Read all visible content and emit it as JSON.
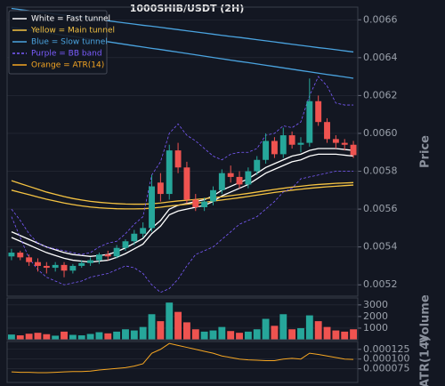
{
  "chart_data": [
    {
      "type": "candlestick",
      "title": "1000SHIB/USDT (2H)",
      "ylabel": "Price",
      "grid": true,
      "legend": "upper left",
      "ylim": [
        0.00514,
        0.006667
      ],
      "yticks": [
        0.0052,
        0.0054,
        0.0056,
        0.0058,
        {
          "value": 0.006,
          "label": "0.0060"
        },
        0.0062,
        0.0064,
        0.0066
      ],
      "up_color": "#26a69a",
      "down_color": "#ef5350",
      "open": [
        0.00535,
        0.00537,
        0.005345,
        0.00532,
        0.0053,
        0.00529,
        0.005305,
        0.005275,
        0.0053,
        0.005315,
        0.00533,
        0.00536,
        0.00535,
        0.005395,
        0.00543,
        0.00547,
        0.0055,
        0.00574,
        0.00568,
        0.00591,
        0.00582,
        0.00565,
        0.00561,
        0.00564,
        0.0057,
        0.00579,
        0.00577,
        0.00573,
        0.0058,
        0.00586,
        0.00596,
        0.00589,
        0.00599,
        0.00594,
        0.00595,
        0.00617,
        0.00606,
        0.00597,
        0.00595,
        0.00594
      ],
      "high": [
        0.00539,
        0.00538,
        0.00536,
        0.00534,
        0.00532,
        0.00532,
        0.00532,
        0.00531,
        0.00533,
        0.005345,
        0.00537,
        0.00538,
        0.00541,
        0.00544,
        0.00549,
        0.00553,
        0.00578,
        0.00579,
        0.00594,
        0.00595,
        0.00585,
        0.00568,
        0.00566,
        0.00572,
        0.00581,
        0.00583,
        0.0058,
        0.00582,
        0.00588,
        0.006,
        0.00598,
        0.00603,
        0.00601,
        0.00598,
        0.00629,
        0.0062,
        0.00608,
        0.00599,
        0.00597,
        0.00596
      ],
      "low": [
        0.00533,
        0.00533,
        0.0053,
        0.00527,
        0.00526,
        0.00527,
        0.00524,
        0.00526,
        0.00529,
        0.0053,
        0.00531,
        0.00533,
        0.00534,
        0.00538,
        0.00541,
        0.00545,
        0.00548,
        0.00564,
        0.00565,
        0.00579,
        0.00563,
        0.00559,
        0.00559,
        0.00562,
        0.00568,
        0.00574,
        0.00571,
        0.00571,
        0.00578,
        0.00584,
        0.00587,
        0.00587,
        0.00592,
        0.0059,
        0.00593,
        0.00604,
        0.00595,
        0.00592,
        0.00591,
        0.00587
      ],
      "close": [
        0.00537,
        0.005345,
        0.00532,
        0.0053,
        0.00529,
        0.005305,
        0.005275,
        0.0053,
        0.005315,
        0.00533,
        0.00536,
        0.00535,
        0.005395,
        0.00543,
        0.00547,
        0.0055,
        0.00572,
        0.00568,
        0.00591,
        0.00582,
        0.00565,
        0.00561,
        0.00564,
        0.0057,
        0.00579,
        0.00577,
        0.00573,
        0.0058,
        0.00586,
        0.00596,
        0.00589,
        0.00599,
        0.00594,
        0.00595,
        0.00617,
        0.00606,
        0.00597,
        0.00595,
        0.00594,
        0.005885
      ],
      "bands": [
        {
          "name": "White = Fast tunnel",
          "color": "#ffffff",
          "dash": false,
          "upper": [
            0.00548,
            0.00546,
            0.00544,
            0.00542,
            0.0054,
            0.005385,
            0.00537,
            0.00536,
            0.005355,
            0.00535,
            0.005355,
            0.00536,
            0.005375,
            0.005395,
            0.00542,
            0.005445,
            0.0055,
            0.00554,
            0.0056,
            0.00562,
            0.00563,
            0.00564,
            0.00565,
            0.00567,
            0.0057,
            0.00572,
            0.00574,
            0.00576,
            0.00579,
            0.00582,
            0.00584,
            0.00586,
            0.00588,
            0.00589,
            0.00591,
            0.00592,
            0.00592,
            0.00592,
            0.005915,
            0.00591
          ],
          "lower": [
            0.00545,
            0.00543,
            0.00541,
            0.00539,
            0.00537,
            0.005355,
            0.00534,
            0.00533,
            0.005325,
            0.00532,
            0.005325,
            0.00533,
            0.005345,
            0.005365,
            0.00539,
            0.005415,
            0.00547,
            0.00551,
            0.00557,
            0.00559,
            0.0056,
            0.00561,
            0.00562,
            0.00564,
            0.00567,
            0.00569,
            0.00571,
            0.00573,
            0.00576,
            0.00579,
            0.00581,
            0.00583,
            0.00585,
            0.00586,
            0.00588,
            0.00589,
            0.00589,
            0.00589,
            0.005885,
            0.00588
          ]
        },
        {
          "name": "Yellow = Main tunnel",
          "color": "#f5c342",
          "dash": false,
          "upper": [
            0.00575,
            0.005735,
            0.00572,
            0.005705,
            0.00569,
            0.005678,
            0.005666,
            0.005656,
            0.005648,
            0.005641,
            0.005636,
            0.005632,
            0.005629,
            0.005627,
            0.005626,
            0.005626,
            0.005628,
            0.005632,
            0.005638,
            0.005643,
            0.005647,
            0.005651,
            0.005655,
            0.00566,
            0.005665,
            0.005671,
            0.005677,
            0.005683,
            0.00569,
            0.005697,
            0.005704,
            0.00571,
            0.005716,
            0.005721,
            0.005726,
            0.00573,
            0.005733,
            0.005736,
            0.005738,
            0.00574
          ],
          "lower": [
            0.0057,
            0.005688,
            0.005676,
            0.005664,
            0.005652,
            0.005642,
            0.005632,
            0.005624,
            0.005617,
            0.005611,
            0.005607,
            0.005604,
            0.005602,
            0.005601,
            0.005601,
            0.005602,
            0.005605,
            0.00561,
            0.005616,
            0.005621,
            0.005626,
            0.005631,
            0.005636,
            0.005642,
            0.005648,
            0.005654,
            0.00566,
            0.005667,
            0.005674,
            0.005681,
            0.005688,
            0.005694,
            0.0057,
            0.005705,
            0.00571,
            0.005714,
            0.005718,
            0.005721,
            0.005724,
            0.005727
          ]
        },
        {
          "name": "Blue = Slow tunnel",
          "color": "#4aa3df",
          "dash": false,
          "upper": [
            0.00666,
            0.006654,
            0.006648,
            0.006642,
            0.006636,
            0.00663,
            0.006625,
            0.006619,
            0.006613,
            0.006607,
            0.006601,
            0.006595,
            0.006589,
            0.006583,
            0.006577,
            0.006571,
            0.006566,
            0.00656,
            0.006554,
            0.006548,
            0.006542,
            0.006536,
            0.00653,
            0.006524,
            0.006518,
            0.006512,
            0.006507,
            0.006501,
            0.006495,
            0.006489,
            0.006483,
            0.006477,
            0.006471,
            0.006465,
            0.006459,
            0.006453,
            0.006448,
            0.006442,
            0.006436,
            0.00643
          ],
          "lower": [
            0.00656,
            0.006553,
            0.006546,
            0.006539,
            0.006532,
            0.006525,
            0.006518,
            0.006512,
            0.006505,
            0.006498,
            0.006491,
            0.006484,
            0.006477,
            0.00647,
            0.006463,
            0.006456,
            0.006449,
            0.006443,
            0.006436,
            0.006429,
            0.006422,
            0.006415,
            0.006408,
            0.006401,
            0.006394,
            0.006387,
            0.00638,
            0.006374,
            0.006367,
            0.00636,
            0.006353,
            0.006346,
            0.006339,
            0.006332,
            0.006325,
            0.006318,
            0.006311,
            0.006305,
            0.006298,
            0.006291
          ]
        },
        {
          "name": "Purple = BB band",
          "color": "#7b5cff",
          "dash": true,
          "upper": [
            0.0056,
            0.00554,
            0.00547,
            0.00542,
            0.0054,
            0.00539,
            0.00538,
            0.00537,
            0.00536,
            0.00537,
            0.0054,
            0.00542,
            0.00543,
            0.00547,
            0.00552,
            0.00556,
            0.00578,
            0.00585,
            0.006,
            0.00605,
            0.00599,
            0.00596,
            0.00592,
            0.00588,
            0.00586,
            0.00589,
            0.0059,
            0.0059,
            0.00592,
            0.00599,
            0.006,
            0.00604,
            0.00603,
            0.00606,
            0.0062,
            0.0063,
            0.00625,
            0.00616,
            0.00615,
            0.00615
          ],
          "lower": [
            0.00556,
            0.00545,
            0.00534,
            0.00528,
            0.00524,
            0.00522,
            0.0052,
            0.00521,
            0.00522,
            0.00524,
            0.00525,
            0.00526,
            0.00528,
            0.0053,
            0.00529,
            0.00526,
            0.0052,
            0.00516,
            0.00518,
            0.00523,
            0.0053,
            0.00536,
            0.00538,
            0.0054,
            0.00544,
            0.00548,
            0.00552,
            0.00554,
            0.00556,
            0.0056,
            0.00564,
            0.00569,
            0.00571,
            0.00576,
            0.00577,
            0.00578,
            0.00579,
            0.0058,
            0.0058,
            0.0058
          ]
        }
      ]
    },
    {
      "type": "bar",
      "ylabel": "Volume",
      "ylim": [
        0,
        3600
      ],
      "yticks": [
        1000,
        2000,
        3000
      ],
      "values": [
        450,
        380,
        520,
        600,
        480,
        350,
        700,
        420,
        380,
        500,
        650,
        550,
        700,
        900,
        800,
        1100,
        2200,
        1600,
        3200,
        2400,
        1500,
        900,
        700,
        800,
        1100,
        750,
        600,
        700,
        900,
        1800,
        1200,
        2200,
        900,
        1000,
        2100,
        1600,
        1100,
        800,
        700,
        900
      ]
    },
    {
      "type": "line",
      "ylabel": "ATR(14)",
      "ylim": [
        4e-05,
        0.000145
      ],
      "yticks": [
        {
          "value": 7.5e-05,
          "label": "0.000075"
        },
        {
          "value": 0.0001,
          "label": "0.000100"
        },
        {
          "value": 0.000125,
          "label": "0.000125"
        }
      ],
      "series": [
        {
          "name": "Orange = ATR(14)",
          "color": "#f5a623",
          "values": [
            6.7e-05,
            6.6e-05,
            6.6e-05,
            6.5e-05,
            6.5e-05,
            6.6e-05,
            6.7e-05,
            6.8e-05,
            6.8e-05,
            6.9e-05,
            7.2e-05,
            7.4e-05,
            7.6e-05,
            7.8e-05,
            8.2e-05,
            8.8e-05,
            0.000115,
            0.000125,
            0.00014,
            0.000135,
            0.00013,
            0.000125,
            0.00012,
            0.000115,
            0.000108,
            0.000104,
            0.0001,
            9.8e-05,
            9.7e-05,
            9.6e-05,
            9.6e-05,
            0.0001,
            0.000102,
            0.0001,
            0.000115,
            0.000112,
            0.000108,
            0.000104,
            0.0001,
            9.9e-05
          ]
        }
      ]
    }
  ]
}
